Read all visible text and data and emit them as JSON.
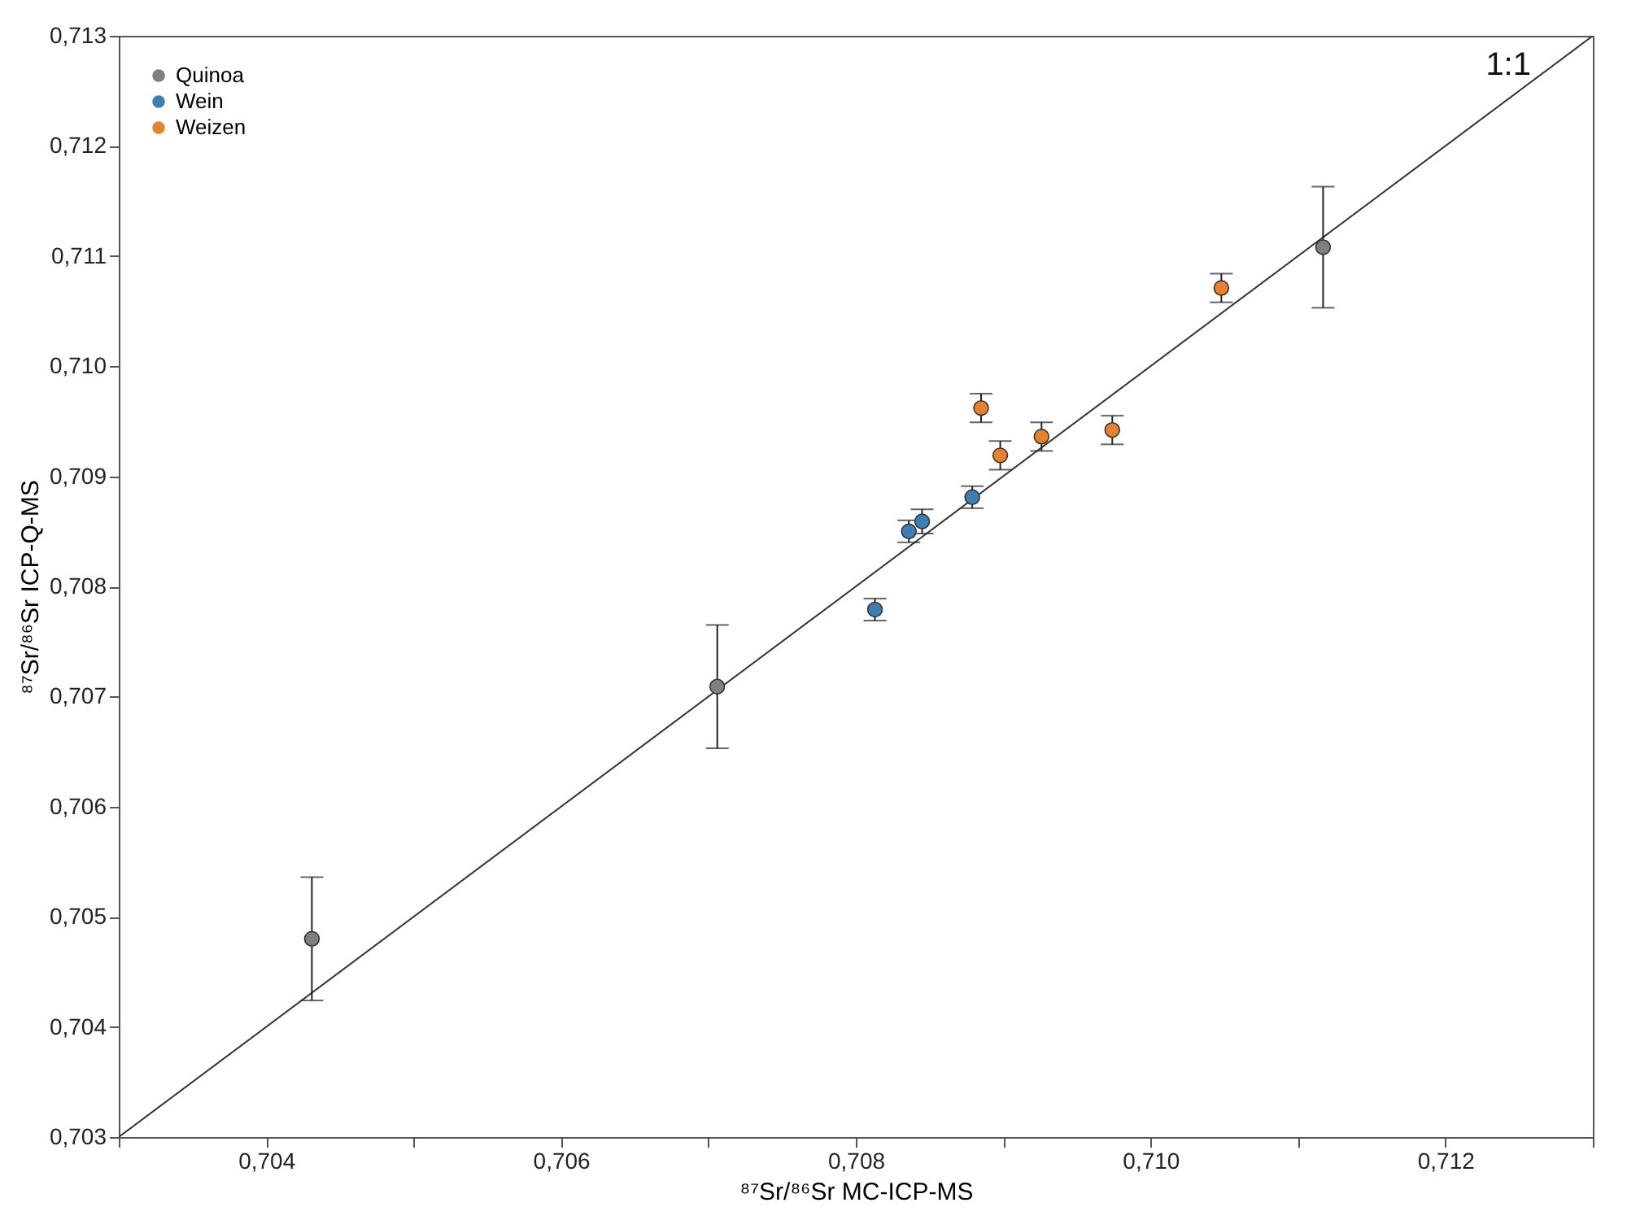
{
  "chart_data": {
    "type": "scatter",
    "xlabel": "⁸⁷Sr/⁸⁶Sr MC-ICP-MS",
    "ylabel": "⁸⁷Sr/⁸⁶Sr ICP-Q-MS",
    "xlim": [
      0.703,
      0.713
    ],
    "ylim": [
      0.703,
      0.713
    ],
    "xticks": [
      {
        "value": 0.703,
        "label": null
      },
      {
        "value": 0.704,
        "label": "0,704"
      },
      {
        "value": 0.705,
        "label": null
      },
      {
        "value": 0.706,
        "label": "0,706"
      },
      {
        "value": 0.707,
        "label": null
      },
      {
        "value": 0.708,
        "label": "0,708"
      },
      {
        "value": 0.709,
        "label": null
      },
      {
        "value": 0.71,
        "label": "0,710"
      },
      {
        "value": 0.711,
        "label": null
      },
      {
        "value": 0.712,
        "label": "0,712"
      },
      {
        "value": 0.713,
        "label": null
      }
    ],
    "yticks": [
      {
        "value": 0.703,
        "label": "0,703"
      },
      {
        "value": 0.704,
        "label": "0,704"
      },
      {
        "value": 0.705,
        "label": "0,705"
      },
      {
        "value": 0.706,
        "label": "0,706"
      },
      {
        "value": 0.707,
        "label": "0,707"
      },
      {
        "value": 0.708,
        "label": "0,708"
      },
      {
        "value": 0.709,
        "label": "0,709"
      },
      {
        "value": 0.71,
        "label": "0,710"
      },
      {
        "value": 0.711,
        "label": "0,711"
      },
      {
        "value": 0.712,
        "label": "0,712"
      },
      {
        "value": 0.713,
        "label": "0,713"
      }
    ],
    "grid": false,
    "legend": "top left",
    "marker": "circle",
    "annotations": [
      "1:1"
    ],
    "series": [
      {
        "name": "Quinoa",
        "color": "#7f7f7f",
        "x": [
          0.70431,
          0.70706,
          0.71117
        ],
        "values": [
          0.7048,
          0.70709,
          0.71108
        ],
        "errors": [
          0.00056,
          0.00056,
          0.00055
        ]
      },
      {
        "name": "Wein",
        "color": "#3a7fb5",
        "x": [
          0.70813,
          0.70836,
          0.70845,
          0.70879
        ],
        "values": [
          0.70779,
          0.7085,
          0.70859,
          0.70881
        ],
        "errors": [
          0.0001,
          0.0001,
          0.00011,
          0.0001
        ]
      },
      {
        "name": "Weizen",
        "color": "#e8812c",
        "x": [
          0.70885,
          0.70898,
          0.70926,
          0.70974,
          0.71048
        ],
        "values": [
          0.70962,
          0.70919,
          0.70936,
          0.70942,
          0.71071
        ],
        "errors": [
          0.00013,
          0.00013,
          0.00013,
          0.00013,
          0.00013
        ]
      },
      {
        "type": "line",
        "color": "#333333",
        "marker": "none",
        "line_style": "solid",
        "x": [
          0.703,
          0.713
        ],
        "values": [
          0.703,
          0.713
        ]
      }
    ]
  }
}
